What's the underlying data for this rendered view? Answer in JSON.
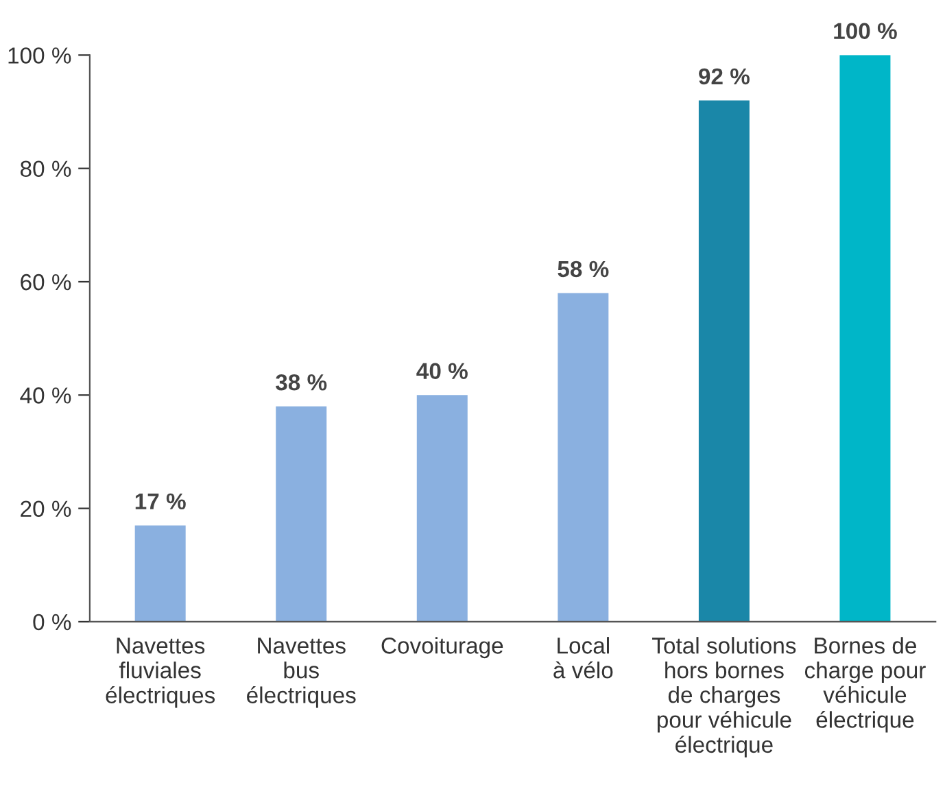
{
  "chart_data": {
    "type": "bar",
    "categories": [
      "Navettes\nfluviales\nélectriques",
      "Navettes\nbus\nélectriques",
      "Covoiturage",
      "Local\nà vélo",
      "Total solutions\nhors bornes\nde charges\npour véhicule\nélectrique",
      "Bornes de\ncharge pour\nvéhicule\nélectrique"
    ],
    "values": [
      17,
      38,
      40,
      58,
      92,
      100
    ],
    "colors": [
      "#8ab0e0",
      "#8ab0e0",
      "#8ab0e0",
      "#8ab0e0",
      "#1a87a8",
      "#00b6c8"
    ],
    "value_labels": [
      "17 %",
      "38 %",
      "40 %",
      "58 %",
      "92 %",
      "100 %"
    ],
    "ylim": [
      0,
      100
    ],
    "yticks": [
      {
        "value": 0,
        "label": "0 %"
      },
      {
        "value": 20,
        "label": "20 %"
      },
      {
        "value": 40,
        "label": "40 %"
      },
      {
        "value": 60,
        "label": "60 %"
      },
      {
        "value": 80,
        "label": "80 %"
      },
      {
        "value": 100,
        "label": "100 %"
      }
    ],
    "grid": false
  }
}
